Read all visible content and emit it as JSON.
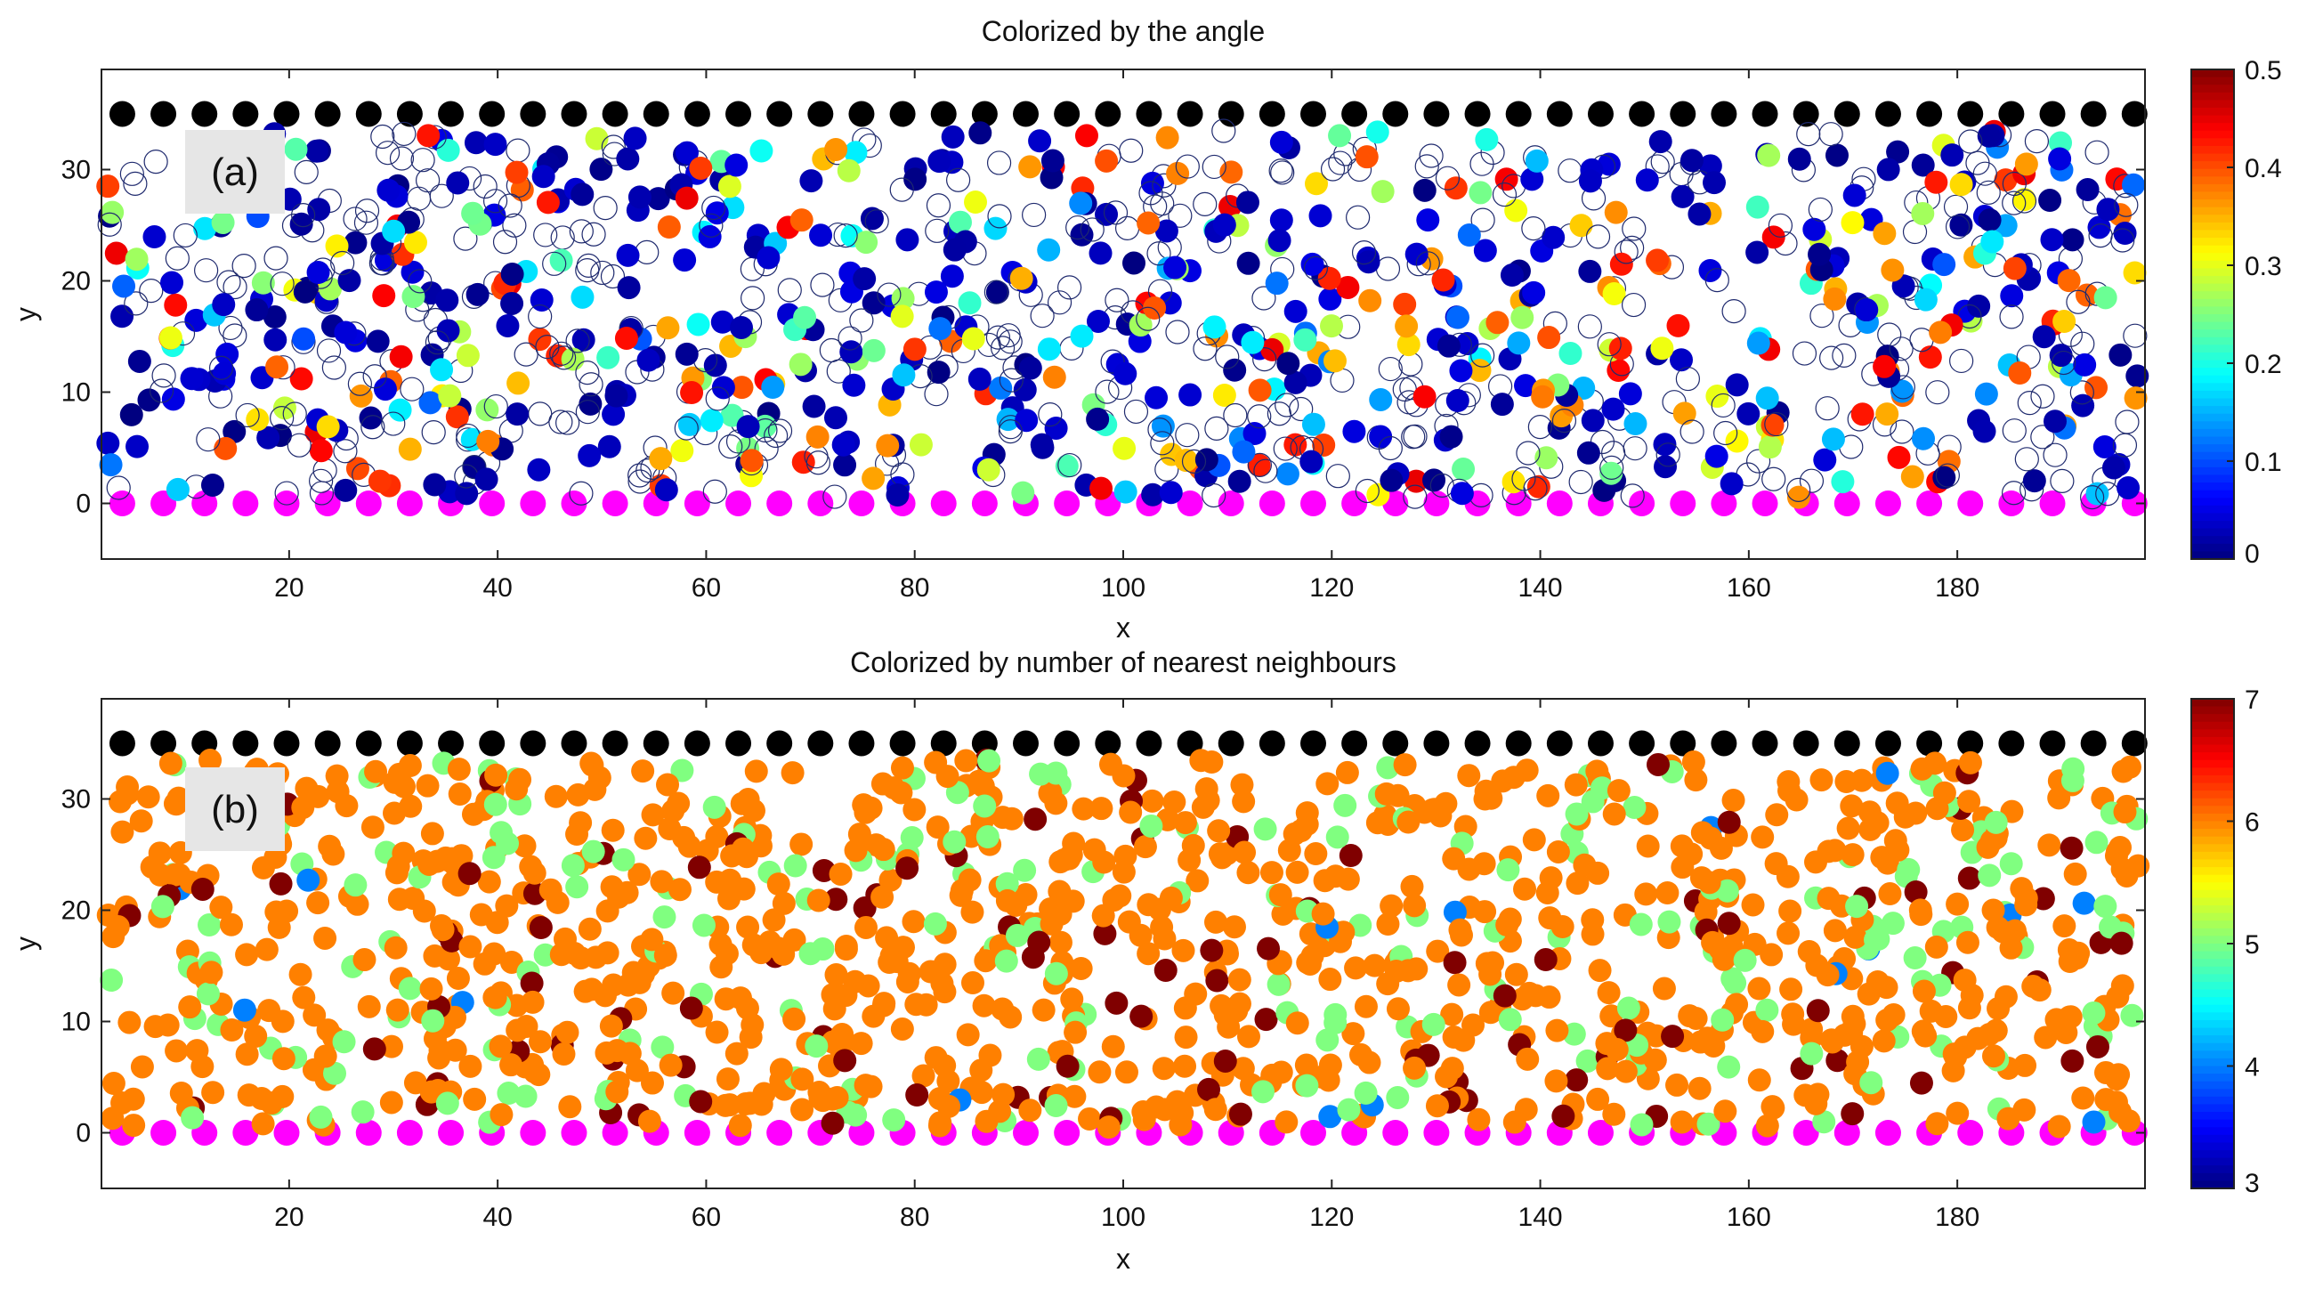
{
  "chart_data": [
    {
      "type": "scatter",
      "panel": "(a)",
      "title": "Colorized by the angle",
      "xlabel": "x",
      "ylabel": "y",
      "xlim": [
        2,
        198
      ],
      "ylim": [
        -5,
        39
      ],
      "xticks": [
        "20",
        "40",
        "60",
        "80",
        "100",
        "120",
        "140",
        "160",
        "180"
      ],
      "yticks": [
        "0",
        "10",
        "20",
        "30"
      ],
      "colorbar": {
        "colormap": "jet",
        "range": [
          0,
          0.5
        ],
        "ticks": [
          "0",
          "0.1",
          "0.2",
          "0.3",
          "0.4",
          "0.5"
        ]
      },
      "series": [
        {
          "role": "top boundary particles",
          "y": 35,
          "x_from": 4,
          "x_to": 197,
          "count": 50,
          "color": "#000000"
        },
        {
          "role": "bottom boundary particles",
          "y": 0,
          "x_from": 4,
          "x_to": 197,
          "count": 50,
          "color": "#ff00ff"
        },
        {
          "role": "bulk particles (filled = colored by angle, open = uncolored)",
          "y_range": [
            0.5,
            33.5
          ],
          "count": 1150,
          "open_fraction": 0.4,
          "angle_range": [
            0,
            0.5
          ]
        }
      ],
      "grid": false,
      "legend": "colorbar right"
    },
    {
      "type": "scatter",
      "panel": "(b)",
      "title": "Colorized by number of nearest neighbours",
      "xlabel": "x",
      "ylabel": "y",
      "xlim": [
        2,
        198
      ],
      "ylim": [
        -5,
        39
      ],
      "xticks": [
        "20",
        "40",
        "60",
        "80",
        "100",
        "120",
        "140",
        "160",
        "180"
      ],
      "yticks": [
        "0",
        "10",
        "20",
        "30"
      ],
      "colorbar": {
        "colormap": "jet",
        "range": [
          3,
          7
        ],
        "ticks": [
          "3",
          "4",
          "5",
          "6",
          "7"
        ]
      },
      "series": [
        {
          "role": "top boundary particles",
          "y": 35,
          "x_from": 4,
          "x_to": 197,
          "count": 50,
          "color": "#000000"
        },
        {
          "role": "bottom boundary particles",
          "y": 0,
          "x_from": 4,
          "x_to": 197,
          "count": 50,
          "color": "#ff00ff"
        },
        {
          "role": "bulk particles colored by neighbour count",
          "y_range": [
            0.5,
            33.5
          ],
          "count": 1250,
          "neighbour_fractions": {
            "4": 0.015,
            "5": 0.19,
            "6": 0.715,
            "7": 0.08
          }
        }
      ],
      "grid": false,
      "legend": "colorbar right"
    }
  ]
}
